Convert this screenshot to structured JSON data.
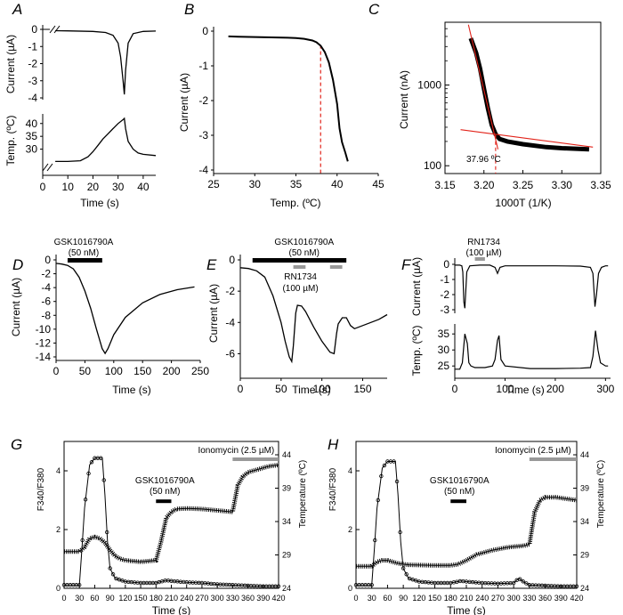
{
  "chart_data": [
    {
      "id": "A",
      "type": "line",
      "panel_label": "A",
      "subplots": [
        {
          "ylabel": "Current (µA)",
          "ylim": [
            -4,
            0
          ],
          "yticks": [
            "0",
            "-1",
            "-2",
            "-3",
            "-4"
          ],
          "series": [
            {
              "x": [
                5,
                10,
                20,
                25,
                28,
                30,
                31,
                32,
                32.5,
                33,
                34,
                36,
                40,
                45
              ],
              "y": [
                -0.08,
                -0.09,
                -0.12,
                -0.18,
                -0.35,
                -0.8,
                -1.6,
                -3.0,
                -3.8,
                -2.4,
                -0.8,
                -0.25,
                -0.12,
                -0.1
              ]
            }
          ]
        },
        {
          "ylabel": "Temp. (ºC)",
          "ylim": [
            25,
            42
          ],
          "yticks": [
            "40",
            "35",
            "30"
          ],
          "series": [
            {
              "x": [
                5,
                10,
                15,
                18,
                20,
                22,
                24,
                26,
                28,
                30,
                32,
                32.5,
                33,
                34,
                36,
                38,
                40,
                45
              ],
              "y": [
                25.2,
                25.2,
                25.5,
                27,
                29,
                31.5,
                34,
                36,
                38,
                40,
                41.5,
                42,
                38,
                33,
                30,
                28.5,
                28,
                27.5
              ]
            }
          ]
        }
      ],
      "xlabel": "Time (s)",
      "xlim": [
        0,
        45
      ],
      "xticks": [
        "0",
        "10",
        "20",
        "30",
        "40"
      ]
    },
    {
      "id": "B",
      "type": "line",
      "panel_label": "B",
      "xlabel": "Temp. (ºC)",
      "ylabel": "Current (µA)",
      "xlim": [
        25,
        45
      ],
      "ylim": [
        -4,
        0
      ],
      "xticks": [
        "25",
        "30",
        "35",
        "40",
        "45"
      ],
      "yticks": [
        "0",
        "-1",
        "-2",
        "-3",
        "-4"
      ],
      "threshold_x": 38,
      "series": [
        {
          "x": [
            26.8,
            28,
            30,
            32,
            34,
            35,
            36,
            37,
            37.5,
            38,
            38.5,
            39,
            39.5,
            40,
            40.3,
            40.6,
            41,
            41.3
          ],
          "y": [
            -0.15,
            -0.16,
            -0.17,
            -0.18,
            -0.19,
            -0.2,
            -0.22,
            -0.27,
            -0.32,
            -0.42,
            -0.6,
            -0.9,
            -1.4,
            -2.1,
            -2.8,
            -3.2,
            -3.5,
            -3.75
          ]
        }
      ]
    },
    {
      "id": "C",
      "type": "scatter",
      "panel_label": "C",
      "xlabel": "1000T (1/K)",
      "ylabel": "Current (nA)",
      "xlim": [
        3.15,
        3.35
      ],
      "ylim": [
        80,
        6000
      ],
      "yscale": "log",
      "xticks": [
        "3.15",
        "3.20",
        "3.25",
        "3.30",
        "3.35"
      ],
      "yticks": [
        "1000",
        "100"
      ],
      "annotation": "37.96 ºC",
      "threshold_x": 3.215,
      "series": [
        {
          "x": [
            3.183,
            3.19,
            3.195,
            3.2,
            3.205,
            3.21,
            3.215,
            3.22,
            3.23,
            3.25,
            3.28,
            3.3,
            3.335
          ],
          "y": [
            3800,
            2500,
            1600,
            900,
            520,
            320,
            245,
            215,
            200,
            185,
            170,
            165,
            160
          ]
        }
      ],
      "fit_lines": [
        {
          "x": [
            3.18,
            3.218
          ],
          "y": [
            5600,
            160
          ]
        },
        {
          "x": [
            3.17,
            3.34
          ],
          "y": [
            280,
            170
          ]
        }
      ]
    },
    {
      "id": "D",
      "type": "line",
      "panel_label": "D",
      "xlabel": "Time (s)",
      "ylabel": "Current (µA)",
      "xlim": [
        0,
        250
      ],
      "ylim": [
        -14,
        0
      ],
      "xticks": [
        "0",
        "50",
        "100",
        "150",
        "200",
        "250"
      ],
      "yticks": [
        "0",
        "-2",
        "-4",
        "-6",
        "-8",
        "-10",
        "-12",
        "-14"
      ],
      "drug_bars": [
        {
          "label": "GSK1016790A",
          "conc": "(50 nM)",
          "start": 20,
          "end": 80,
          "color": "#000000"
        }
      ],
      "series": [
        {
          "x": [
            0,
            10,
            20,
            30,
            40,
            50,
            60,
            70,
            80,
            85,
            90,
            100,
            120,
            150,
            180,
            210,
            240
          ],
          "y": [
            -0.5,
            -0.6,
            -0.8,
            -1.3,
            -2.5,
            -4.5,
            -7,
            -10,
            -12.8,
            -13.5,
            -12.8,
            -10.8,
            -8.3,
            -6.2,
            -5,
            -4.3,
            -3.9
          ]
        }
      ]
    },
    {
      "id": "E",
      "type": "line",
      "panel_label": "E",
      "xlabel": "Time (s)",
      "ylabel": "Current (µA)",
      "xlim": [
        0,
        180
      ],
      "ylim": [
        -7,
        0
      ],
      "xticks": [
        "0",
        "50",
        "100",
        "150"
      ],
      "yticks": [
        "0",
        "-2",
        "-4",
        "-6"
      ],
      "drug_bars": [
        {
          "label": "GSK1016790A",
          "conc": "(50 nM)",
          "start": 15,
          "end": 130,
          "color": "#000000"
        },
        {
          "label": "RN1734",
          "conc": "(100 µM)",
          "start": 65,
          "end": 80,
          "color": "#999999"
        },
        {
          "label": "",
          "conc": "",
          "start": 110,
          "end": 125,
          "color": "#999999"
        }
      ],
      "series": [
        {
          "x": [
            0,
            10,
            20,
            30,
            40,
            50,
            55,
            60,
            63,
            65,
            68,
            70,
            75,
            80,
            90,
            100,
            110,
            115,
            118,
            120,
            125,
            130,
            135,
            140,
            150,
            160,
            170,
            180
          ],
          "y": [
            -0.5,
            -0.55,
            -0.7,
            -1.1,
            -2.3,
            -4,
            -5.2,
            -6.2,
            -6.5,
            -5.5,
            -3.4,
            -2.9,
            -2.95,
            -3.3,
            -4.3,
            -5.2,
            -5.9,
            -6,
            -4.7,
            -4.1,
            -3.7,
            -3.7,
            -4.2,
            -4.4,
            -4.2,
            -4,
            -3.8,
            -3.5
          ]
        }
      ]
    },
    {
      "id": "F",
      "type": "line",
      "panel_label": "F",
      "xlabel": "Time (s)",
      "xlim": [
        0,
        310
      ],
      "xticks": [
        "0",
        "100",
        "200",
        "300"
      ],
      "drug_bars": [
        {
          "label": "RN1734",
          "conc": "(100 µM)",
          "start": 40,
          "end": 60,
          "color": "#999999"
        }
      ],
      "subplots": [
        {
          "ylabel": "Current (µA)",
          "ylim": [
            -3,
            0
          ],
          "yticks": [
            "0",
            "-1",
            "-2",
            "-3"
          ],
          "series": [
            {
              "x": [
                0,
                10,
                14,
                16,
                18,
                20,
                24,
                30,
                50,
                70,
                80,
                85,
                90,
                100,
                150,
                200,
                250,
                270,
                275,
                279,
                282,
                286,
                292,
                300,
                305
              ],
              "y": [
                -0.05,
                -0.05,
                -0.1,
                -0.5,
                -2.5,
                -2.9,
                -0.5,
                -0.1,
                -0.05,
                -0.05,
                -0.2,
                -0.6,
                -0.2,
                -0.1,
                -0.1,
                -0.1,
                -0.12,
                -0.2,
                -0.6,
                -2.8,
                -2.0,
                -0.6,
                -0.2,
                -0.1,
                -0.1
              ]
            }
          ]
        },
        {
          "ylabel": "Temp. (ºC)",
          "ylim": [
            22,
            37
          ],
          "yticks": [
            "35",
            "30",
            "25"
          ],
          "series": [
            {
              "x": [
                0,
                10,
                15,
                20,
                25,
                28,
                32,
                40,
                60,
                75,
                80,
                85,
                88,
                92,
                100,
                150,
                200,
                250,
                270,
                275,
                280,
                285,
                290,
                300,
                305
              ],
              "y": [
                24,
                24,
                26,
                35,
                32,
                26,
                25,
                24.5,
                24.5,
                25,
                27,
                33,
                34.5,
                27,
                25,
                24.2,
                24.2,
                24.3,
                24.5,
                28,
                36,
                30,
                26,
                25,
                25
              ]
            }
          ]
        }
      ]
    },
    {
      "id": "G",
      "type": "line",
      "panel_label": "G",
      "xlabel": "Time (s)",
      "ylabel": "F340/F380",
      "ylabel_right": "Temperature (ºC)",
      "xlim": [
        0,
        420
      ],
      "ylim": [
        0,
        5
      ],
      "ylim_right": [
        24,
        46
      ],
      "xticks": [
        "0",
        "30",
        "60",
        "90",
        "120",
        "150",
        "180",
        "210",
        "240",
        "270",
        "300",
        "330",
        "360",
        "390",
        "420"
      ],
      "yticks": [
        "0",
        "2",
        "4"
      ],
      "yticks_right": [
        "24",
        "29",
        "34",
        "39",
        "44"
      ],
      "drug_bars": [
        {
          "label": "GSK1016790A",
          "conc": "(50 nM)",
          "start": 180,
          "end": 210,
          "color": "#000000"
        },
        {
          "label": "Ionomycin (2.5 µM)",
          "conc": "",
          "start": 330,
          "end": 420,
          "color": "#999999"
        }
      ],
      "series": [
        {
          "x": [
            0,
            10,
            20,
            30,
            40,
            50,
            60,
            70,
            80,
            90,
            100,
            110,
            120,
            150,
            180,
            190,
            200,
            210,
            220,
            240,
            270,
            300,
            330,
            340,
            350,
            360,
            380,
            400,
            420
          ],
          "y": [
            1.25,
            1.25,
            1.25,
            1.25,
            1.4,
            1.7,
            1.75,
            1.7,
            1.55,
            1.3,
            1.1,
            1.0,
            0.95,
            0.9,
            0.95,
            1.6,
            2.4,
            2.6,
            2.7,
            2.72,
            2.7,
            2.65,
            2.6,
            3.5,
            3.8,
            3.95,
            4.05,
            4.15,
            4.2
          ]
        },
        {
          "x": [
            0,
            20,
            30,
            35,
            40,
            50,
            60,
            70,
            75,
            80,
            85,
            90,
            100,
            120,
            150,
            180,
            200,
            210,
            240,
            270,
            300,
            330,
            360,
            390,
            420
          ],
          "y": [
            24.5,
            24.5,
            24.5,
            30,
            36,
            42.5,
            43.5,
            43.5,
            43.5,
            38,
            31,
            27,
            25.5,
            25,
            24.8,
            24.8,
            25.2,
            25.1,
            24.9,
            24.8,
            24.6,
            24.5,
            24.4,
            24.3,
            24.3
          ]
        }
      ]
    },
    {
      "id": "H",
      "type": "line",
      "panel_label": "H",
      "xlabel": "Time (s)",
      "ylabel": "F340/F380",
      "ylabel_right": "Temperature (ºC)",
      "xlim": [
        0,
        420
      ],
      "ylim": [
        0,
        5
      ],
      "ylim_right": [
        24,
        46
      ],
      "xticks": [
        "0",
        "30",
        "60",
        "90",
        "120",
        "150",
        "180",
        "210",
        "240",
        "270",
        "300",
        "330",
        "360",
        "390",
        "420"
      ],
      "yticks": [
        "0",
        "2",
        "4"
      ],
      "yticks_right": [
        "24",
        "29",
        "34",
        "39",
        "44"
      ],
      "drug_bars": [
        {
          "label": "GSK1016790A",
          "conc": "(50 nM)",
          "start": 180,
          "end": 210,
          "color": "#000000"
        },
        {
          "label": "Ionomycin (2.5 µM)",
          "conc": "",
          "start": 330,
          "end": 420,
          "color": "#999999"
        }
      ],
      "series": [
        {
          "x": [
            0,
            20,
            30,
            40,
            50,
            60,
            70,
            80,
            90,
            100,
            150,
            180,
            195,
            210,
            230,
            260,
            290,
            320,
            330,
            340,
            350,
            360,
            380,
            400,
            420
          ],
          "y": [
            0.75,
            0.75,
            0.75,
            0.9,
            0.95,
            0.95,
            0.9,
            0.85,
            0.82,
            0.8,
            0.78,
            0.78,
            0.82,
            0.95,
            1.15,
            1.3,
            1.4,
            1.45,
            1.5,
            2.6,
            3.0,
            3.1,
            3.1,
            3.05,
            3.0
          ]
        },
        {
          "x": [
            0,
            20,
            30,
            35,
            40,
            50,
            60,
            70,
            75,
            80,
            85,
            90,
            100,
            120,
            150,
            180,
            200,
            210,
            240,
            270,
            300,
            310,
            320,
            330,
            360,
            390,
            420
          ],
          "y": [
            24.5,
            24.5,
            24.5,
            30,
            36,
            42,
            43,
            43,
            43,
            38,
            31,
            27,
            25.5,
            25,
            24.8,
            24.8,
            25.1,
            25,
            24.8,
            24.7,
            24.8,
            25.5,
            24.9,
            24.5,
            24.4,
            24.3,
            24.3
          ]
        }
      ]
    }
  ]
}
